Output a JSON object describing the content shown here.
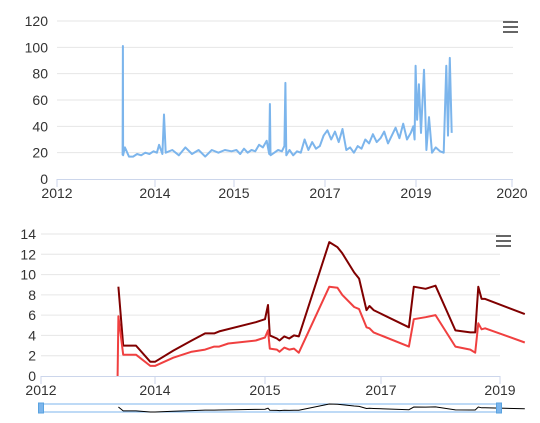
{
  "chart_data": [
    {
      "type": "line",
      "x_tick_labels": [
        "2012",
        "2014",
        "2015",
        "2017",
        "2019",
        "2020"
      ],
      "y_tick_labels": [
        "0",
        "20",
        "40",
        "60",
        "80",
        "100",
        "120"
      ],
      "ylim": [
        0,
        120
      ],
      "grid": true,
      "legend": "none",
      "colors": {
        "series": "#7cb5ec"
      },
      "series": [
        {
          "points": [
            [
              "2013-05-03",
              18
            ],
            [
              "2013-05-05",
              101
            ],
            [
              "2013-05-07",
              18
            ],
            [
              "2013-05-20",
              24
            ],
            [
              "2013-06-20",
              17
            ],
            [
              "2013-07-20",
              17
            ],
            [
              "2013-08-20",
              19
            ],
            [
              "2013-09-20",
              18
            ],
            [
              "2013-10-20",
              20
            ],
            [
              "2013-11-20",
              19
            ],
            [
              "2013-12-20",
              21
            ],
            [
              "2014-01-10",
              20
            ],
            [
              "2014-01-20",
              26
            ],
            [
              "2014-02-05",
              19
            ],
            [
              "2014-02-12",
              49
            ],
            [
              "2014-02-20",
              20
            ],
            [
              "2014-03-20",
              22
            ],
            [
              "2014-04-20",
              18
            ],
            [
              "2014-05-20",
              24
            ],
            [
              "2014-06-20",
              19
            ],
            [
              "2014-07-20",
              22
            ],
            [
              "2014-08-20",
              17
            ],
            [
              "2014-09-20",
              22
            ],
            [
              "2014-10-20",
              20
            ],
            [
              "2014-11-20",
              22
            ],
            [
              "2014-12-20",
              21
            ],
            [
              "2015-01-20",
              22
            ],
            [
              "2015-02-20",
              19
            ],
            [
              "2015-03-20",
              23
            ],
            [
              "2015-04-20",
              20
            ],
            [
              "2015-05-20",
              22
            ],
            [
              "2015-06-20",
              21
            ],
            [
              "2015-07-20",
              26
            ],
            [
              "2015-08-20",
              24
            ],
            [
              "2015-09-20",
              29
            ],
            [
              "2015-10-10",
              19
            ],
            [
              "2015-10-15",
              57
            ],
            [
              "2015-10-20",
              18
            ],
            [
              "2015-11-20",
              20
            ],
            [
              "2015-12-20",
              22
            ],
            [
              "2016-01-20",
              21
            ],
            [
              "2016-02-10",
              25
            ],
            [
              "2016-02-18",
              73
            ],
            [
              "2016-02-25",
              18
            ],
            [
              "2016-03-20",
              22
            ],
            [
              "2016-04-20",
              18
            ],
            [
              "2016-05-20",
              21
            ],
            [
              "2016-06-20",
              20
            ],
            [
              "2016-07-20",
              30
            ],
            [
              "2016-08-20",
              22
            ],
            [
              "2016-09-20",
              28
            ],
            [
              "2016-10-20",
              23
            ],
            [
              "2016-11-20",
              25
            ],
            [
              "2016-12-20",
              33
            ],
            [
              "2017-01-20",
              37
            ],
            [
              "2017-02-20",
              30
            ],
            [
              "2017-03-20",
              36
            ],
            [
              "2017-04-20",
              28
            ],
            [
              "2017-05-20",
              38
            ],
            [
              "2017-06-20",
              22
            ],
            [
              "2017-07-20",
              24
            ],
            [
              "2017-08-20",
              20
            ],
            [
              "2017-09-20",
              25
            ],
            [
              "2017-10-20",
              23
            ],
            [
              "2017-11-20",
              30
            ],
            [
              "2017-12-20",
              27
            ],
            [
              "2018-01-20",
              34
            ],
            [
              "2018-02-20",
              28
            ],
            [
              "2018-03-20",
              31
            ],
            [
              "2018-04-20",
              36
            ],
            [
              "2018-05-20",
              27
            ],
            [
              "2018-06-20",
              33
            ],
            [
              "2018-07-20",
              39
            ],
            [
              "2018-08-20",
              31
            ],
            [
              "2018-09-20",
              42
            ],
            [
              "2018-10-20",
              30
            ],
            [
              "2018-11-20",
              35
            ],
            [
              "2018-12-10",
              40
            ],
            [
              "2018-12-20",
              30
            ],
            [
              "2018-12-28",
              86
            ],
            [
              "2019-01-05",
              45
            ],
            [
              "2019-01-12",
              72
            ],
            [
              "2019-01-20",
              35
            ],
            [
              "2019-02-01",
              83
            ],
            [
              "2019-02-10",
              22
            ],
            [
              "2019-02-20",
              47
            ],
            [
              "2019-03-01",
              20
            ],
            [
              "2019-03-15",
              24
            ],
            [
              "2019-04-01",
              21
            ],
            [
              "2019-04-15",
              20
            ],
            [
              "2019-04-25",
              86
            ],
            [
              "2019-05-01",
              33
            ],
            [
              "2019-05-08",
              92
            ],
            [
              "2019-05-15",
              35
            ]
          ]
        }
      ]
    },
    {
      "type": "line",
      "x_tick_labels": [
        "2012",
        "2014",
        "2015",
        "2017",
        "2019"
      ],
      "y_tick_labels": [
        "0",
        "2",
        "4",
        "6",
        "8",
        "10",
        "12",
        "14"
      ],
      "ylim": [
        0,
        14
      ],
      "grid": true,
      "legend": "none",
      "colors": {
        "series": [
          "#800000",
          "#f04040"
        ]
      },
      "series": [
        {
          "points": [
            [
              "2013-05-10",
              8.8
            ],
            [
              "2013-06-10",
              3.0
            ],
            [
              "2013-09-01",
              3.0
            ],
            [
              "2013-12-01",
              1.4
            ],
            [
              "2014-01-01",
              1.4
            ],
            [
              "2014-03-01",
              2.5
            ],
            [
              "2014-05-01",
              3.5
            ],
            [
              "2014-06-15",
              4.2
            ],
            [
              "2014-07-15",
              4.2
            ],
            [
              "2014-08-01",
              4.4
            ],
            [
              "2014-12-01",
              5.3
            ],
            [
              "2015-01-01",
              5.6
            ],
            [
              "2015-01-20",
              7.0
            ],
            [
              "2015-02-01",
              4.0
            ],
            [
              "2015-03-15",
              3.7
            ],
            [
              "2015-04-01",
              3.5
            ],
            [
              "2015-05-01",
              3.9
            ],
            [
              "2015-06-01",
              3.7
            ],
            [
              "2015-07-01",
              4.0
            ],
            [
              "2015-08-01",
              3.9
            ],
            [
              "2016-02-10",
              13.2
            ],
            [
              "2016-04-01",
              12.7
            ],
            [
              "2016-05-01",
              12.1
            ],
            [
              "2016-07-15",
              10.2
            ],
            [
              "2016-08-15",
              9.6
            ],
            [
              "2016-10-01",
              6.5
            ],
            [
              "2016-10-20",
              6.9
            ],
            [
              "2016-11-15",
              6.5
            ],
            [
              "2017-06-20",
              4.8
            ],
            [
              "2017-07-20",
              8.8
            ],
            [
              "2017-10-01",
              8.6
            ],
            [
              "2017-12-01",
              8.9
            ],
            [
              "2018-04-01",
              4.5
            ],
            [
              "2018-07-01",
              4.3
            ],
            [
              "2018-08-01",
              4.3
            ],
            [
              "2018-08-20",
              8.8
            ],
            [
              "2018-09-10",
              7.6
            ],
            [
              "2018-10-01",
              7.6
            ],
            [
              "2019-06-01",
              6.1
            ]
          ]
        },
        {
          "points": [
            [
              "2013-05-05",
              0.0
            ],
            [
              "2013-05-10",
              5.9
            ],
            [
              "2013-06-10",
              2.1
            ],
            [
              "2013-09-01",
              2.1
            ],
            [
              "2013-12-01",
              1.0
            ],
            [
              "2014-01-01",
              1.0
            ],
            [
              "2014-03-01",
              1.8
            ],
            [
              "2014-05-01",
              2.4
            ],
            [
              "2014-06-15",
              2.6
            ],
            [
              "2014-07-15",
              2.9
            ],
            [
              "2014-08-01",
              2.9
            ],
            [
              "2014-09-01",
              3.2
            ],
            [
              "2014-12-01",
              3.5
            ],
            [
              "2015-01-01",
              3.8
            ],
            [
              "2015-01-20",
              4.5
            ],
            [
              "2015-02-01",
              2.7
            ],
            [
              "2015-03-15",
              2.6
            ],
            [
              "2015-04-01",
              2.4
            ],
            [
              "2015-05-01",
              2.8
            ],
            [
              "2015-06-01",
              2.6
            ],
            [
              "2015-07-01",
              2.7
            ],
            [
              "2015-08-01",
              2.3
            ],
            [
              "2016-02-10",
              8.8
            ],
            [
              "2016-04-01",
              8.7
            ],
            [
              "2016-05-01",
              8.0
            ],
            [
              "2016-07-15",
              6.8
            ],
            [
              "2016-08-15",
              6.6
            ],
            [
              "2016-10-01",
              4.8
            ],
            [
              "2016-10-20",
              4.7
            ],
            [
              "2016-11-15",
              4.3
            ],
            [
              "2017-06-20",
              2.9
            ],
            [
              "2017-07-20",
              5.6
            ],
            [
              "2017-10-01",
              5.8
            ],
            [
              "2017-12-01",
              6.0
            ],
            [
              "2018-04-01",
              2.9
            ],
            [
              "2018-07-01",
              2.6
            ],
            [
              "2018-08-01",
              2.3
            ],
            [
              "2018-08-20",
              5.2
            ],
            [
              "2018-09-10",
              4.6
            ],
            [
              "2018-10-01",
              4.7
            ],
            [
              "2019-06-01",
              3.3
            ]
          ]
        }
      ]
    }
  ],
  "navigator": {
    "colors": {
      "outline": "#7cb5ec",
      "handle": "#5aa3e0",
      "line": "#000000"
    },
    "series_index": 0
  },
  "icons": {
    "menu": "menu-hamburger-icon"
  }
}
